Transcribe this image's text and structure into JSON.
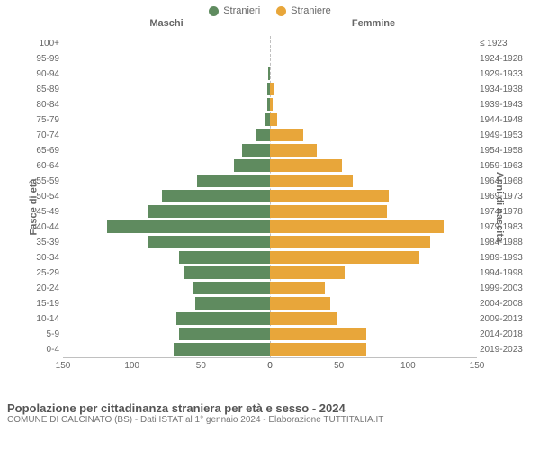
{
  "legend": [
    {
      "label": "Stranieri",
      "color": "#5f8b5f"
    },
    {
      "label": "Straniere",
      "color": "#e8a63a"
    }
  ],
  "chart": {
    "type": "population-pyramid",
    "left_header": "Maschi",
    "right_header": "Femmine",
    "y_left_label": "Fasce di età",
    "y_right_label": "Anni di nascita",
    "x_max": 150,
    "x_ticks_left": [
      150,
      100,
      50,
      0
    ],
    "x_ticks_right": [
      0,
      50,
      100,
      150
    ],
    "series_colors": {
      "male": "#5f8b5f",
      "female": "#e8a63a"
    },
    "rows": [
      {
        "age": "100+",
        "birth": "≤ 1923",
        "male": 0,
        "female": 0
      },
      {
        "age": "95-99",
        "birth": "1924-1928",
        "male": 0,
        "female": 0
      },
      {
        "age": "90-94",
        "birth": "1929-1933",
        "male": 1,
        "female": 0
      },
      {
        "age": "85-89",
        "birth": "1934-1938",
        "male": 2,
        "female": 3
      },
      {
        "age": "80-84",
        "birth": "1939-1943",
        "male": 2,
        "female": 2
      },
      {
        "age": "75-79",
        "birth": "1944-1948",
        "male": 4,
        "female": 5
      },
      {
        "age": "70-74",
        "birth": "1949-1953",
        "male": 10,
        "female": 24
      },
      {
        "age": "65-69",
        "birth": "1954-1958",
        "male": 20,
        "female": 34
      },
      {
        "age": "60-64",
        "birth": "1959-1963",
        "male": 26,
        "female": 52
      },
      {
        "age": "55-59",
        "birth": "1964-1968",
        "male": 53,
        "female": 60
      },
      {
        "age": "50-54",
        "birth": "1969-1973",
        "male": 78,
        "female": 86
      },
      {
        "age": "45-49",
        "birth": "1974-1978",
        "male": 88,
        "female": 85
      },
      {
        "age": "40-44",
        "birth": "1979-1983",
        "male": 118,
        "female": 126
      },
      {
        "age": "35-39",
        "birth": "1984-1988",
        "male": 88,
        "female": 116
      },
      {
        "age": "30-34",
        "birth": "1989-1993",
        "male": 66,
        "female": 108
      },
      {
        "age": "25-29",
        "birth": "1994-1998",
        "male": 62,
        "female": 54
      },
      {
        "age": "20-24",
        "birth": "1999-2003",
        "male": 56,
        "female": 40
      },
      {
        "age": "15-19",
        "birth": "2004-2008",
        "male": 54,
        "female": 44
      },
      {
        "age": "10-14",
        "birth": "2009-2013",
        "male": 68,
        "female": 48
      },
      {
        "age": "5-9",
        "birth": "2014-2018",
        "male": 66,
        "female": 70
      },
      {
        "age": "0-4",
        "birth": "2019-2023",
        "male": 70,
        "female": 70
      }
    ]
  },
  "footer": {
    "title": "Popolazione per cittadinanza straniera per età e sesso - 2024",
    "subtitle": "COMUNE DI CALCINATO (BS) - Dati ISTAT al 1° gennaio 2024 - Elaborazione TUTTITALIA.IT"
  }
}
